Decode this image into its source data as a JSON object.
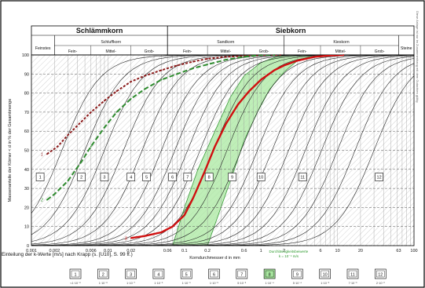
{
  "chart_data": {
    "type": "line",
    "title_left": "Schlämmkorn",
    "title_right": "Siebkorn",
    "column_groups": [
      {
        "label": "Feinstes",
        "sub": []
      },
      {
        "label": "Schluffkorn",
        "sub": [
          "Fein-",
          "Mittel-",
          "Grob-"
        ]
      },
      {
        "label": "Sandkorn",
        "sub": [
          "Fein-",
          "Mittel-",
          "Grob-"
        ]
      },
      {
        "label": "Kieskorn",
        "sub": [
          "Fein-",
          "Mittel-",
          "Grob-"
        ]
      },
      {
        "label": "Steine",
        "sub": []
      }
    ],
    "xlabel": "Korndurchmesser d in mm",
    "ylabel": "Massenanteile der Körner < d in % der Gesamtmenge",
    "x_scale": "log",
    "xlim": [
      0.001,
      100
    ],
    "ylim": [
      0,
      100
    ],
    "x_ticks": [
      {
        "v": 0.001,
        "l": "0.001"
      },
      {
        "v": 0.002,
        "l": "0.002"
      },
      {
        "v": 0.006,
        "l": "0.006"
      },
      {
        "v": 0.01,
        "l": "0.01"
      },
      {
        "v": 0.02,
        "l": "0.02"
      },
      {
        "v": 0.06,
        "l": "0.06"
      },
      {
        "v": 0.1,
        "l": "0.1"
      },
      {
        "v": 0.2,
        "l": "0.2"
      },
      {
        "v": 0.6,
        "l": "0.6"
      },
      {
        "v": 1,
        "l": "1"
      },
      {
        "v": 2,
        "l": "2"
      },
      {
        "v": 6,
        "l": "6"
      },
      {
        "v": 10,
        "l": "10"
      },
      {
        "v": 20,
        "l": "20"
      },
      {
        "v": 63,
        "l": "63"
      },
      {
        "v": 100,
        "l": "100"
      }
    ],
    "y_ticks": [
      0,
      10,
      20,
      30,
      40,
      50,
      60,
      70,
      80,
      90,
      100
    ],
    "series": [
      {
        "marker": "1",
        "color": "#8b1a1a",
        "dash": "3,2",
        "x": [
          0.0016,
          0.0022,
          0.003,
          0.0045,
          0.006,
          0.009,
          0.013,
          0.02,
          0.03,
          0.05,
          0.08,
          0.13,
          0.2,
          0.35,
          0.6,
          1.0,
          1.8
        ],
        "y": [
          48,
          52,
          58,
          65,
          70,
          76,
          81,
          86,
          89,
          92,
          94.5,
          96.5,
          98,
          99,
          99.5,
          100,
          100
        ]
      },
      {
        "marker": "2",
        "color": "#2e8b2e",
        "dash": "6,3",
        "x": [
          0.0016,
          0.002,
          0.003,
          0.0045,
          0.006,
          0.009,
          0.013,
          0.02,
          0.03,
          0.05,
          0.08,
          0.13,
          0.2,
          0.35,
          0.6,
          1.0,
          1.5
        ],
        "y": [
          24,
          27,
          34,
          44,
          52,
          62,
          70,
          77,
          82,
          87,
          90,
          93,
          95,
          97.5,
          99,
          100,
          100
        ]
      },
      {
        "marker": "3",
        "color": "#d01010",
        "dash": "",
        "x": [
          0.02,
          0.03,
          0.05,
          0.07,
          0.1,
          0.13,
          0.18,
          0.25,
          0.35,
          0.5,
          0.7,
          1.0,
          1.5,
          2.0,
          3.0,
          5.0,
          8.0,
          12.0
        ],
        "y": [
          4,
          5,
          7,
          10,
          16,
          25,
          38,
          52,
          64,
          74,
          81,
          87,
          92,
          94.5,
          97,
          99,
          99.7,
          100
        ]
      }
    ],
    "series_markers": [
      "1",
      "2",
      "3"
    ],
    "band": {
      "color": "#a9e8a0",
      "lower_x": [
        0.2,
        0.3,
        0.45,
        0.6,
        0.9,
        1.3,
        2,
        3,
        5
      ],
      "lower_y": [
        0,
        20,
        40,
        55,
        70,
        82,
        91,
        97,
        100
      ],
      "upper_x": [
        0.07,
        0.1,
        0.15,
        0.25,
        0.4,
        0.6,
        1.0,
        1.6,
        2.2
      ],
      "upper_y": [
        0,
        20,
        40,
        60,
        78,
        89,
        96,
        99,
        100
      ]
    },
    "family_curve_d50": [
      0.0025,
      0.005,
      0.009,
      0.016,
      0.028,
      0.05,
      0.075,
      0.11,
      0.16,
      0.24,
      0.36,
      0.55,
      0.9,
      1.4,
      2.3,
      3.8,
      6.2,
      10,
      17,
      30
    ],
    "fields": [
      {
        "label": "1",
        "x": 0.0013
      },
      {
        "label": "2",
        "x": 0.0045
      },
      {
        "label": "3",
        "x": 0.009
      },
      {
        "label": "4",
        "x": 0.02
      },
      {
        "label": "5",
        "x": 0.032
      },
      {
        "label": "6",
        "x": 0.07
      },
      {
        "label": "7",
        "x": 0.11
      },
      {
        "label": "8",
        "x": 0.21
      },
      {
        "label": "9",
        "x": 0.42
      },
      {
        "label": "10",
        "x": 1.0
      },
      {
        "label": "11",
        "x": 3.5
      },
      {
        "label": "12",
        "x": 35
      }
    ],
    "fields_y": 36,
    "annotation_lines": [
      "Durchlässigkeitsbeiwerte",
      "k = 10⁻⁴ m/s"
    ],
    "k_row_label": "Einteilung der k-Werte [m/s] nach Krapp (s. [U10], S. 99 ff.)",
    "k_row": [
      {
        "box": "1",
        "value": "<1·10⁻⁸"
      },
      {
        "box": "2",
        "value": "1·10⁻⁸"
      },
      {
        "box": "3",
        "value": "1·10⁻⁷"
      },
      {
        "box": "4",
        "value": "1·10⁻⁶"
      },
      {
        "box": "5",
        "value": "1·10⁻⁶"
      },
      {
        "box": "6",
        "value": "1·10⁻⁵"
      },
      {
        "box": "7",
        "value": "5·10⁻⁵"
      },
      {
        "box": "8",
        "value": "1·10⁻⁴",
        "highlight": true
      },
      {
        "box": "9",
        "value": "5·10⁻⁴"
      },
      {
        "box": "10",
        "value": "1·10⁻³"
      },
      {
        "box": "11",
        "value": "7·10⁻³"
      },
      {
        "box": "12",
        "value": "2·10⁻²"
      }
    ],
    "side_note": "Diese Anlage ist nur im Zusammenhang mit dem Gutachten gültig",
    "grid": true,
    "colors": {
      "highlight_band": "#a9e8a0",
      "highlight_text": "#2e9b2e",
      "field_box_fill": "#ffffff"
    }
  }
}
